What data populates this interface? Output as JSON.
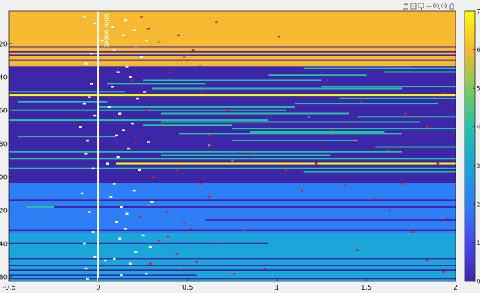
{
  "toolbar": {
    "icons": [
      "export-icon",
      "brush-icon",
      "datatip-icon",
      "pan-icon",
      "zoom-in-icon",
      "zoom-out-icon",
      "home-icon"
    ]
  },
  "chart_data": {
    "type": "heatmap",
    "title": "",
    "xlabel": "",
    "ylabel": "",
    "xlim": [
      -0.5,
      2
    ],
    "ylim": [
      1,
      162
    ],
    "y_reversed": true,
    "x_ticks": [
      {
        "value": -0.5,
        "label": "-0.5"
      },
      {
        "value": 0,
        "label": "0"
      },
      {
        "value": 0.5,
        "label": "0.5"
      },
      {
        "value": 1,
        "label": "1"
      },
      {
        "value": 1.5,
        "label": "1.5"
      },
      {
        "value": 2,
        "label": "2"
      }
    ],
    "y_ticks": [
      {
        "value": 20,
        "label": "20"
      },
      {
        "value": 40,
        "label": "40"
      },
      {
        "value": 60,
        "label": "60"
      },
      {
        "value": 80,
        "label": "80"
      },
      {
        "value": 100,
        "label": "100"
      },
      {
        "value": 120,
        "label": "120"
      },
      {
        "value": 140,
        "label": "140"
      },
      {
        "value": 160,
        "label": "160"
      }
    ],
    "colorbar": {
      "limits": [
        0,
        7
      ],
      "ticks": [
        0,
        1,
        2,
        3,
        4,
        5,
        6,
        7
      ],
      "tick_labels": [
        "0",
        "1",
        "2",
        "3",
        "4",
        "5",
        "6",
        "7"
      ],
      "colormap": "parula",
      "colors": [
        "#3e26a8",
        "#4748ef",
        "#2e7ff5",
        "#1aa6d9",
        "#24c2a9",
        "#7ec95b",
        "#f6b932",
        "#f9fb0e"
      ]
    },
    "annotation": {
      "text": "Stim onset",
      "x": 0
    },
    "onset_line": {
      "x": 0,
      "color": "#ffffff"
    },
    "row_bands": [
      {
        "from": 1,
        "to": 33,
        "value": 6
      },
      {
        "from": 34,
        "to": 103,
        "value": 0
      },
      {
        "from": 104,
        "to": 133,
        "value": 2
      },
      {
        "from": 134,
        "to": 162,
        "value": 3
      }
    ],
    "row_lines": [
      {
        "row": 22,
        "value": 0,
        "x_start": -0.5,
        "x_end": 2
      },
      {
        "row": 25,
        "value": 0,
        "x_start": -0.5,
        "x_end": 2
      },
      {
        "row": 27,
        "value": 0,
        "x_start": -0.5,
        "x_end": 2
      },
      {
        "row": 30,
        "value": 0,
        "x_start": -0.5,
        "x_end": 2
      },
      {
        "row": 34,
        "value": 0,
        "x_start": 1.75,
        "x_end": 2
      },
      {
        "row": 35,
        "value": 4,
        "x_start": 1.15,
        "x_end": 2
      },
      {
        "row": 37,
        "value": 4,
        "x_start": 1.6,
        "x_end": 2
      },
      {
        "row": 39,
        "value": 4,
        "x_start": 0.95,
        "x_end": 1.5
      },
      {
        "row": 42,
        "value": 4,
        "x_start": 0.25,
        "x_end": 1.25
      },
      {
        "row": 44,
        "value": 4,
        "x_start": 0.05,
        "x_end": 0.6
      },
      {
        "row": 46,
        "value": 4,
        "x_start": 1.25,
        "x_end": 2
      },
      {
        "row": 47,
        "value": 4,
        "x_start": 0.3,
        "x_end": 1.7
      },
      {
        "row": 49,
        "value": 4,
        "x_start": -0.5,
        "x_end": 0.15
      },
      {
        "row": 51,
        "value": 7,
        "x_start": -0.5,
        "x_end": 2
      },
      {
        "row": 53,
        "value": 4,
        "x_start": 1.35,
        "x_end": 2
      },
      {
        "row": 55,
        "value": 4,
        "x_start": -0.45,
        "x_end": 0.05
      },
      {
        "row": 56,
        "value": 4,
        "x_start": 1.1,
        "x_end": 1.9
      },
      {
        "row": 58,
        "value": 4,
        "x_start": 0.0,
        "x_end": 1.1
      },
      {
        "row": 60,
        "value": 4,
        "x_start": -0.5,
        "x_end": 1.05
      },
      {
        "row": 62,
        "value": 4,
        "x_start": 0.35,
        "x_end": 1.4
      },
      {
        "row": 64,
        "value": 4,
        "x_start": 1.45,
        "x_end": 2
      },
      {
        "row": 66,
        "value": 4,
        "x_start": -0.5,
        "x_end": 0.95
      },
      {
        "row": 67,
        "value": 4,
        "x_start": 0.35,
        "x_end": 1.8
      },
      {
        "row": 69,
        "value": 4,
        "x_start": 0.25,
        "x_end": 0.75
      },
      {
        "row": 71,
        "value": 4,
        "x_start": 0.75,
        "x_end": 2
      },
      {
        "row": 73,
        "value": 4,
        "x_start": 0.85,
        "x_end": 1.6
      },
      {
        "row": 74,
        "value": 4,
        "x_start": 0.45,
        "x_end": 1.7
      },
      {
        "row": 76,
        "value": 4,
        "x_start": -0.45,
        "x_end": 0.1
      },
      {
        "row": 78,
        "value": 4,
        "x_start": 0.75,
        "x_end": 1.45
      },
      {
        "row": 82,
        "value": 4,
        "x_start": 1.55,
        "x_end": 2
      },
      {
        "row": 85,
        "value": 4,
        "x_start": -0.5,
        "x_end": 1.7
      },
      {
        "row": 87,
        "value": 4,
        "x_start": 0.35,
        "x_end": 1.3
      },
      {
        "row": 89,
        "value": 4,
        "x_start": -0.5,
        "x_end": 2
      },
      {
        "row": 92,
        "value": 7,
        "x_start": 0.1,
        "x_end": 2
      },
      {
        "row": 95,
        "value": 4,
        "x_start": -0.5,
        "x_end": 2
      },
      {
        "row": 97,
        "value": 4,
        "x_start": 1.15,
        "x_end": 2
      },
      {
        "row": 99,
        "value": 0,
        "x_start": -0.5,
        "x_end": 2
      },
      {
        "row": 101,
        "value": 0,
        "x_start": -0.5,
        "x_end": 2
      },
      {
        "row": 103,
        "value": 0,
        "x_start": -0.5,
        "x_end": 2
      },
      {
        "row": 114,
        "value": 0,
        "x_start": -0.5,
        "x_end": 2
      },
      {
        "row": 118,
        "value": 0,
        "x_start": -0.3,
        "x_end": 2
      },
      {
        "row": 118,
        "value": 4,
        "x_start": -0.4,
        "x_end": -0.25
      },
      {
        "row": 126,
        "value": 0,
        "x_start": 0.6,
        "x_end": 2
      },
      {
        "row": 132,
        "value": 0,
        "x_start": -0.5,
        "x_end": 2
      },
      {
        "row": 140,
        "value": 0,
        "x_start": -0.5,
        "x_end": 0.95
      },
      {
        "row": 149,
        "value": 0,
        "x_start": -0.5,
        "x_end": 2
      },
      {
        "row": 153,
        "value": 0,
        "x_start": -0.5,
        "x_end": 2
      },
      {
        "row": 156,
        "value": 0,
        "x_start": -0.5,
        "x_end": 2
      },
      {
        "row": 159,
        "value": 0,
        "x_start": -0.5,
        "x_end": 0.55
      },
      {
        "row": 161,
        "value": 0,
        "x_start": -0.5,
        "x_end": 2
      }
    ],
    "white_marks": [
      [
        -0.08,
        4
      ],
      [
        -0.02,
        8
      ],
      [
        0.02,
        18
      ],
      [
        -0.07,
        32
      ],
      [
        -0.04,
        44
      ],
      [
        -0.05,
        52
      ],
      [
        -0.08,
        56
      ],
      [
        -0.02,
        63
      ],
      [
        -0.1,
        70
      ],
      [
        -0.06,
        78
      ],
      [
        -0.07,
        86
      ],
      [
        -0.03,
        95
      ],
      [
        -0.09,
        110
      ],
      [
        -0.05,
        121
      ],
      [
        -0.03,
        133
      ],
      [
        -0.08,
        140
      ],
      [
        -0.02,
        148
      ],
      [
        -0.07,
        155
      ],
      [
        -0.06,
        161
      ],
      [
        0.09,
        24
      ],
      [
        0.11,
        37
      ],
      [
        0.08,
        46
      ],
      [
        0.12,
        62
      ],
      [
        0.1,
        75
      ],
      [
        0.11,
        88
      ],
      [
        0.09,
        104
      ],
      [
        0.13,
        118
      ],
      [
        0.1,
        127
      ],
      [
        0.12,
        137
      ],
      [
        0.09,
        149
      ],
      [
        0.13,
        159
      ],
      [
        0.15,
        6
      ],
      [
        0.2,
        12
      ],
      [
        0.24,
        28
      ],
      [
        0.18,
        40
      ],
      [
        0.22,
        53
      ],
      [
        0.19,
        68
      ],
      [
        0.17,
        83
      ],
      [
        0.23,
        96
      ],
      [
        0.2,
        108
      ],
      [
        0.16,
        122
      ],
      [
        0.25,
        135
      ],
      [
        0.21,
        145
      ],
      [
        0.18,
        152
      ],
      [
        0.27,
        18
      ],
      [
        0.26,
        49
      ],
      [
        0.28,
        79
      ],
      [
        0.3,
        115
      ],
      [
        0.29,
        142
      ],
      [
        0.27,
        158
      ],
      [
        0.08,
        10
      ],
      [
        0.14,
        15
      ],
      [
        -0.04,
        26
      ],
      [
        0.16,
        34
      ],
      [
        0.06,
        58
      ],
      [
        0.14,
        72
      ],
      [
        0.05,
        92
      ],
      [
        0.07,
        112
      ],
      [
        0.15,
        131
      ],
      [
        0.04,
        150
      ]
    ],
    "red_marks": [
      [
        0.24,
        4
      ],
      [
        0.28,
        11
      ],
      [
        0.45,
        15
      ],
      [
        0.53,
        24
      ],
      [
        0.5,
        30
      ],
      [
        0.4,
        37
      ],
      [
        0.19,
        42
      ],
      [
        0.58,
        48
      ],
      [
        0.73,
        60
      ],
      [
        0.35,
        68
      ],
      [
        0.62,
        75
      ],
      [
        0.87,
        86
      ],
      [
        0.44,
        96
      ],
      [
        0.57,
        104
      ],
      [
        0.62,
        112
      ],
      [
        0.38,
        121
      ],
      [
        0.48,
        128
      ],
      [
        0.52,
        131
      ],
      [
        0.34,
        138
      ],
      [
        0.44,
        146
      ],
      [
        0.55,
        151
      ],
      [
        0.76,
        158
      ],
      [
        0.66,
        7
      ],
      [
        1.01,
        16
      ],
      [
        1.28,
        42
      ],
      [
        1.47,
        55
      ],
      [
        1.72,
        62
      ],
      [
        1.93,
        50
      ],
      [
        1.84,
        70
      ],
      [
        1.62,
        84
      ],
      [
        1.9,
        92
      ],
      [
        1.38,
        105
      ],
      [
        1.63,
        120
      ],
      [
        1.95,
        125
      ],
      [
        1.76,
        133
      ],
      [
        1.45,
        144
      ],
      [
        1.84,
        150
      ],
      [
        1.93,
        157
      ],
      [
        0.27,
        60
      ],
      [
        0.21,
        80
      ],
      [
        0.31,
        100
      ],
      [
        0.23,
        124
      ],
      [
        0.39,
        136
      ],
      [
        0.29,
        152
      ],
      [
        0.66,
        140
      ],
      [
        0.82,
        132
      ],
      [
        0.93,
        155
      ],
      [
        1.14,
        108
      ],
      [
        1.22,
        92
      ],
      [
        1.05,
        96
      ],
      [
        1.31,
        72
      ],
      [
        1.55,
        113
      ],
      [
        1.7,
        104
      ]
    ],
    "gray_marks": [
      [
        0.21,
        22
      ],
      [
        0.34,
        19
      ],
      [
        0.48,
        28
      ],
      [
        0.57,
        33
      ],
      [
        0.36,
        58
      ],
      [
        0.62,
        81
      ],
      [
        0.75,
        90
      ],
      [
        1.18,
        64
      ],
      [
        1.44,
        78
      ],
      [
        0.28,
        117
      ],
      [
        0.46,
        155
      ]
    ]
  }
}
